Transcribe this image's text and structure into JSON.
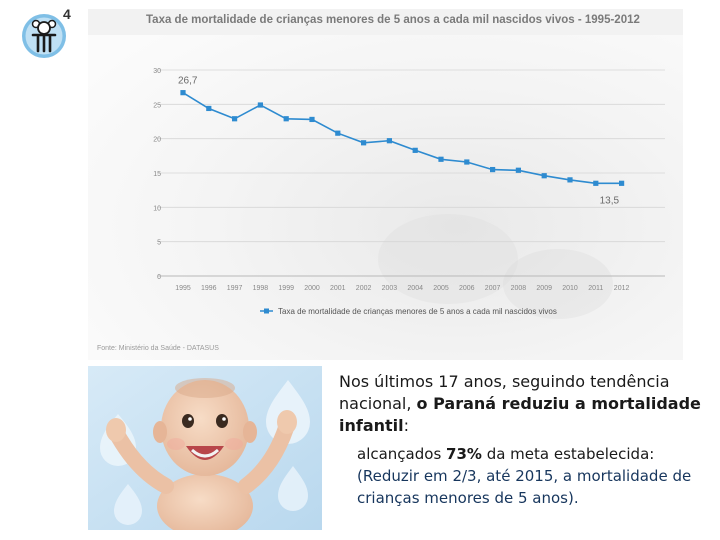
{
  "goal_number": "4",
  "chart_data": {
    "type": "line",
    "title": "Taxa de mortalidade de crianças menores de 5 anos a cada mil nascidos vivos - 1995-2012",
    "categories": [
      "1995",
      "1996",
      "1997",
      "1998",
      "1999",
      "2000",
      "2001",
      "2002",
      "2003",
      "2004",
      "2005",
      "2006",
      "2007",
      "2008",
      "2009",
      "2010",
      "2011",
      "2012"
    ],
    "series": [
      {
        "name": "Taxa de mortalidade de crianças menores de 5 anos a cada mil nascidos vivos",
        "values": [
          26.7,
          24.4,
          22.9,
          24.9,
          22.9,
          22.8,
          20.8,
          19.4,
          19.7,
          18.3,
          17.0,
          16.6,
          15.5,
          15.4,
          14.6,
          14.0,
          13.5,
          13.5
        ]
      }
    ],
    "yticks": [
      "0",
      "5",
      "10",
      "15",
      "20",
      "25",
      "30"
    ],
    "ylim": [
      0,
      30
    ],
    "annotations": {
      "first": "26,7",
      "last": "13,5"
    },
    "source": "Fonte: Ministério da Saúde - DATASUS",
    "grid": true,
    "legend_position": "bottom",
    "colors": {
      "line": "#2e8bd0",
      "marker": "#2e8bd0",
      "title": "#7a7a7a",
      "axis_text": "#888888"
    }
  },
  "text": {
    "p1_start": "Nos últimos 17 anos, seguindo tendência nacional, ",
    "p1_bold": "o Paraná reduziu a mortalidade infantil",
    "p1_end": ":",
    "p2_start": "alcançados ",
    "p2_bold": "73%",
    "p2_mid": " da meta estabelecida: ",
    "p2_paren": "(Reduzir em 2/3,  até 2015, a mortalidade de crianças menores de 5 anos)."
  },
  "icons": {
    "goal": "child-icon",
    "photo": "smiling-baby-photo"
  }
}
